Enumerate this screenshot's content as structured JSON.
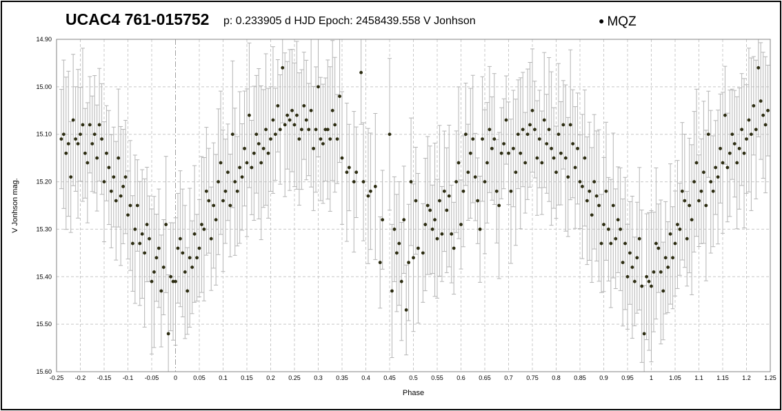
{
  "header": {
    "star_name": "UCAC4 761-015752",
    "info": "p: 0.233905 d  HJD Epoch: 2458439.558  V Jonhson",
    "legend_label": "MQZ"
  },
  "colors": {
    "point": "#2b2b10",
    "errorbar": "#b4b4b4",
    "grid": "#c8c8c8",
    "axis": "#808080"
  },
  "chart_data": {
    "type": "scatter",
    "xlabel": "Phase",
    "ylabel": "V Jonhson mag.",
    "xlim": [
      -0.25,
      1.25
    ],
    "ylim": [
      14.9,
      15.6
    ],
    "y_inverted": true,
    "grid": true,
    "legend_placement": "top-right",
    "xticks": [
      "-0.25",
      "-0.2",
      "-0.15",
      "-0.1",
      "-0.05",
      "0",
      "0.05",
      "0.1",
      "0.15",
      "0.2",
      "0.25",
      "0.3",
      "0.35",
      "0.4",
      "0.45",
      "0.5",
      "0.55",
      "0.6",
      "0.65",
      "0.7",
      "0.75",
      "0.8",
      "0.85",
      "0.9",
      "0.95",
      "1",
      "1.05",
      "1.1",
      "1.15",
      "1.2",
      "1.25"
    ],
    "yticks": [
      "14.90",
      "15.00",
      "15.10",
      "15.20",
      "15.30",
      "15.40",
      "15.50",
      "15.60"
    ],
    "series": [
      {
        "name": "MQZ",
        "error_bar_typical": 0.12,
        "points": [
          [
            -0.24,
            15.11
          ],
          [
            -0.235,
            15.1
          ],
          [
            -0.23,
            15.14
          ],
          [
            -0.225,
            15.12
          ],
          [
            -0.22,
            15.19
          ],
          [
            -0.215,
            15.07
          ],
          [
            -0.21,
            15.11
          ],
          [
            -0.205,
            15.12
          ],
          [
            -0.2,
            15.1
          ],
          [
            -0.195,
            15.08
          ],
          [
            -0.19,
            15.14
          ],
          [
            -0.185,
            15.16
          ],
          [
            -0.18,
            15.08
          ],
          [
            -0.175,
            15.12
          ],
          [
            -0.17,
            15.1
          ],
          [
            -0.165,
            15.15
          ],
          [
            -0.16,
            15.08
          ],
          [
            -0.155,
            15.11
          ],
          [
            -0.15,
            15.2
          ],
          [
            -0.145,
            15.14
          ],
          [
            -0.14,
            15.17
          ],
          [
            -0.135,
            15.22
          ],
          [
            -0.13,
            15.19
          ],
          [
            -0.125,
            15.24
          ],
          [
            -0.12,
            15.15
          ],
          [
            -0.115,
            15.23
          ],
          [
            -0.11,
            15.21
          ],
          [
            -0.105,
            15.19
          ],
          [
            -0.1,
            15.27
          ],
          [
            -0.095,
            15.25
          ],
          [
            -0.09,
            15.33
          ],
          [
            -0.085,
            15.3
          ],
          [
            -0.08,
            15.25
          ],
          [
            -0.075,
            15.33
          ],
          [
            -0.07,
            15.31
          ],
          [
            -0.065,
            15.35
          ],
          [
            -0.06,
            15.29
          ],
          [
            -0.055,
            15.32
          ],
          [
            -0.05,
            15.41
          ],
          [
            -0.045,
            15.39
          ],
          [
            -0.04,
            15.36
          ],
          [
            -0.035,
            15.34
          ],
          [
            -0.03,
            15.43
          ],
          [
            -0.025,
            15.38
          ],
          [
            -0.02,
            15.29
          ],
          [
            -0.015,
            15.52
          ],
          [
            -0.01,
            15.4
          ],
          [
            -0.005,
            15.41
          ],
          [
            0.0,
            15.41
          ],
          [
            0.005,
            15.34
          ],
          [
            0.01,
            15.32
          ],
          [
            0.015,
            15.35
          ],
          [
            0.02,
            15.39
          ],
          [
            0.025,
            15.43
          ],
          [
            0.03,
            15.36
          ],
          [
            0.035,
            15.38
          ],
          [
            0.04,
            15.31
          ],
          [
            0.045,
            15.36
          ],
          [
            0.05,
            15.34
          ],
          [
            0.055,
            15.29
          ],
          [
            0.06,
            15.3
          ],
          [
            0.065,
            15.22
          ],
          [
            0.07,
            15.24
          ],
          [
            0.075,
            15.32
          ],
          [
            0.08,
            15.25
          ],
          [
            0.085,
            15.28
          ],
          [
            0.09,
            15.2
          ],
          [
            0.095,
            15.16
          ],
          [
            0.1,
            15.24
          ],
          [
            0.105,
            15.22
          ],
          [
            0.11,
            15.18
          ],
          [
            0.115,
            15.25
          ],
          [
            0.12,
            15.1
          ],
          [
            0.125,
            15.2
          ],
          [
            0.13,
            15.22
          ],
          [
            0.135,
            15.17
          ],
          [
            0.14,
            15.19
          ],
          [
            0.145,
            15.13
          ],
          [
            0.15,
            15.16
          ],
          [
            0.155,
            15.06
          ],
          [
            0.16,
            15.17
          ],
          [
            0.165,
            15.14
          ],
          [
            0.17,
            15.1
          ],
          [
            0.175,
            15.12
          ],
          [
            0.18,
            15.16
          ],
          [
            0.185,
            15.13
          ],
          [
            0.19,
            15.09
          ],
          [
            0.195,
            15.14
          ],
          [
            0.2,
            15.11
          ],
          [
            0.205,
            15.07
          ],
          [
            0.21,
            15.1
          ],
          [
            0.215,
            15.04
          ],
          [
            0.22,
            15.09
          ],
          [
            0.225,
            14.96
          ],
          [
            0.23,
            15.08
          ],
          [
            0.235,
            15.06
          ],
          [
            0.24,
            15.07
          ],
          [
            0.245,
            15.05
          ],
          [
            0.25,
            15.08
          ],
          [
            0.255,
            15.06
          ],
          [
            0.26,
            15.11
          ],
          [
            0.265,
            15.09
          ],
          [
            0.27,
            15.04
          ],
          [
            0.275,
            15.07
          ],
          [
            0.28,
            15.09
          ],
          [
            0.285,
            15.05
          ],
          [
            0.29,
            15.13
          ],
          [
            0.295,
            15.09
          ],
          [
            0.3,
            15.0
          ],
          [
            0.305,
            15.11
          ],
          [
            0.31,
            15.12
          ],
          [
            0.315,
            15.09
          ],
          [
            0.32,
            15.09
          ],
          [
            0.325,
            15.11
          ],
          [
            0.33,
            15.05
          ],
          [
            0.335,
            15.08
          ],
          [
            0.34,
            15.11
          ],
          [
            0.345,
            15.02
          ],
          [
            0.35,
            15.15
          ],
          [
            0.36,
            15.18
          ],
          [
            0.365,
            15.17
          ],
          [
            0.375,
            15.2
          ],
          [
            0.38,
            15.18
          ],
          [
            0.39,
            14.97
          ],
          [
            0.395,
            15.2
          ],
          [
            0.405,
            15.23
          ],
          [
            0.41,
            15.22
          ],
          [
            0.42,
            15.21
          ],
          [
            0.43,
            15.37
          ],
          [
            0.435,
            15.28
          ],
          [
            0.45,
            15.1
          ],
          [
            0.455,
            15.43
          ],
          [
            0.46,
            15.3
          ],
          [
            0.465,
            15.35
          ],
          [
            0.47,
            15.33
          ],
          [
            0.475,
            15.41
          ],
          [
            0.48,
            15.28
          ],
          [
            0.485,
            15.47
          ],
          [
            0.49,
            15.37
          ],
          [
            0.495,
            15.2
          ],
          [
            0.5,
            15.36
          ],
          [
            0.505,
            15.24
          ],
          [
            0.51,
            15.34
          ],
          [
            0.52,
            15.35
          ],
          [
            0.525,
            15.29
          ],
          [
            0.53,
            15.25
          ],
          [
            0.535,
            15.26
          ],
          [
            0.54,
            15.3
          ],
          [
            0.545,
            15.28
          ],
          [
            0.55,
            15.32
          ],
          [
            0.555,
            15.24
          ],
          [
            0.56,
            15.31
          ],
          [
            0.565,
            15.22
          ],
          [
            0.57,
            15.26
          ],
          [
            0.575,
            15.23
          ],
          [
            0.58,
            15.31
          ],
          [
            0.585,
            15.34
          ],
          [
            0.59,
            15.2
          ],
          [
            0.595,
            15.16
          ],
          [
            0.6,
            15.29
          ],
          [
            0.605,
            15.22
          ],
          [
            0.61,
            15.1
          ],
          [
            0.615,
            15.18
          ],
          [
            0.62,
            15.14
          ],
          [
            0.625,
            15.11
          ],
          [
            0.63,
            15.19
          ],
          [
            0.635,
            15.24
          ],
          [
            0.64,
            15.3
          ],
          [
            0.645,
            15.11
          ],
          [
            0.65,
            15.2
          ],
          [
            0.655,
            15.16
          ],
          [
            0.66,
            15.09
          ],
          [
            0.665,
            15.13
          ],
          [
            0.67,
            15.11
          ],
          [
            0.675,
            15.22
          ],
          [
            0.68,
            15.25
          ],
          [
            0.685,
            15.14
          ],
          [
            0.69,
            15.12
          ],
          [
            0.695,
            15.07
          ],
          [
            0.7,
            15.14
          ],
          [
            0.705,
            15.22
          ],
          [
            0.71,
            15.13
          ],
          [
            0.715,
            15.18
          ],
          [
            0.72,
            15.1
          ],
          [
            0.725,
            15.14
          ],
          [
            0.73,
            15.09
          ],
          [
            0.735,
            15.16
          ],
          [
            0.74,
            15.1
          ],
          [
            0.745,
            15.08
          ],
          [
            0.75,
            15.05
          ],
          [
            0.755,
            15.09
          ],
          [
            0.76,
            15.15
          ],
          [
            0.765,
            15.11
          ],
          [
            0.77,
            15.16
          ],
          [
            0.775,
            15.07
          ],
          [
            0.78,
            15.12
          ],
          [
            0.785,
            15.09
          ],
          [
            0.79,
            15.13
          ],
          [
            0.795,
            15.15
          ],
          [
            0.8,
            15.18
          ],
          [
            0.805,
            15.1
          ],
          [
            0.81,
            15.14
          ],
          [
            0.815,
            15.08
          ],
          [
            0.82,
            15.15
          ],
          [
            0.825,
            15.19
          ],
          [
            0.83,
            15.08
          ],
          [
            0.835,
            15.12
          ],
          [
            0.84,
            15.17
          ],
          [
            0.845,
            15.13
          ],
          [
            0.85,
            15.2
          ],
          [
            0.855,
            15.21
          ],
          [
            0.86,
            15.15
          ],
          [
            0.865,
            15.24
          ],
          [
            0.87,
            15.22
          ],
          [
            0.875,
            15.27
          ],
          [
            0.88,
            15.2
          ],
          [
            0.885,
            15.23
          ],
          [
            0.89,
            15.25
          ],
          [
            0.895,
            15.33
          ],
          [
            0.9,
            15.29
          ],
          [
            0.905,
            15.22
          ],
          [
            0.91,
            15.3
          ],
          [
            0.915,
            15.33
          ],
          [
            0.92,
            15.25
          ],
          [
            0.925,
            15.32
          ],
          [
            0.93,
            15.28
          ],
          [
            0.935,
            15.3
          ],
          [
            0.94,
            15.37
          ],
          [
            0.945,
            15.33
          ],
          [
            0.95,
            15.4
          ],
          [
            0.955,
            15.35
          ],
          [
            0.96,
            15.38
          ],
          [
            0.965,
            15.41
          ],
          [
            0.97,
            15.36
          ],
          [
            0.975,
            15.32
          ],
          [
            0.98,
            15.42
          ],
          [
            0.985,
            15.52
          ],
          [
            0.99,
            15.4
          ],
          [
            0.995,
            15.41
          ],
          [
            1.0,
            15.42
          ],
          [
            1.005,
            15.39
          ],
          [
            1.01,
            15.33
          ],
          [
            1.015,
            15.34
          ],
          [
            1.02,
            15.39
          ],
          [
            1.025,
            15.43
          ],
          [
            1.03,
            15.36
          ],
          [
            1.035,
            15.38
          ],
          [
            1.04,
            15.31
          ],
          [
            1.045,
            15.36
          ],
          [
            1.05,
            15.33
          ],
          [
            1.055,
            15.29
          ],
          [
            1.06,
            15.3
          ],
          [
            1.065,
            15.22
          ],
          [
            1.07,
            15.24
          ],
          [
            1.075,
            15.32
          ],
          [
            1.08,
            15.25
          ],
          [
            1.085,
            15.28
          ],
          [
            1.09,
            15.2
          ],
          [
            1.095,
            15.16
          ],
          [
            1.1,
            15.24
          ],
          [
            1.105,
            15.22
          ],
          [
            1.11,
            15.18
          ],
          [
            1.115,
            15.25
          ],
          [
            1.12,
            15.1
          ],
          [
            1.125,
            15.2
          ],
          [
            1.13,
            15.22
          ],
          [
            1.135,
            15.17
          ],
          [
            1.14,
            15.19
          ],
          [
            1.145,
            15.13
          ],
          [
            1.15,
            15.16
          ],
          [
            1.155,
            15.06
          ],
          [
            1.16,
            15.17
          ],
          [
            1.165,
            15.14
          ],
          [
            1.17,
            15.1
          ],
          [
            1.175,
            15.12
          ],
          [
            1.18,
            15.16
          ],
          [
            1.185,
            15.13
          ],
          [
            1.19,
            15.09
          ],
          [
            1.195,
            15.14
          ],
          [
            1.2,
            15.11
          ],
          [
            1.205,
            15.07
          ],
          [
            1.21,
            15.1
          ],
          [
            1.215,
            15.04
          ],
          [
            1.22,
            15.09
          ],
          [
            1.225,
            14.96
          ],
          [
            1.23,
            15.03
          ],
          [
            1.235,
            15.06
          ],
          [
            1.24,
            15.08
          ],
          [
            1.245,
            15.05
          ]
        ]
      }
    ]
  }
}
